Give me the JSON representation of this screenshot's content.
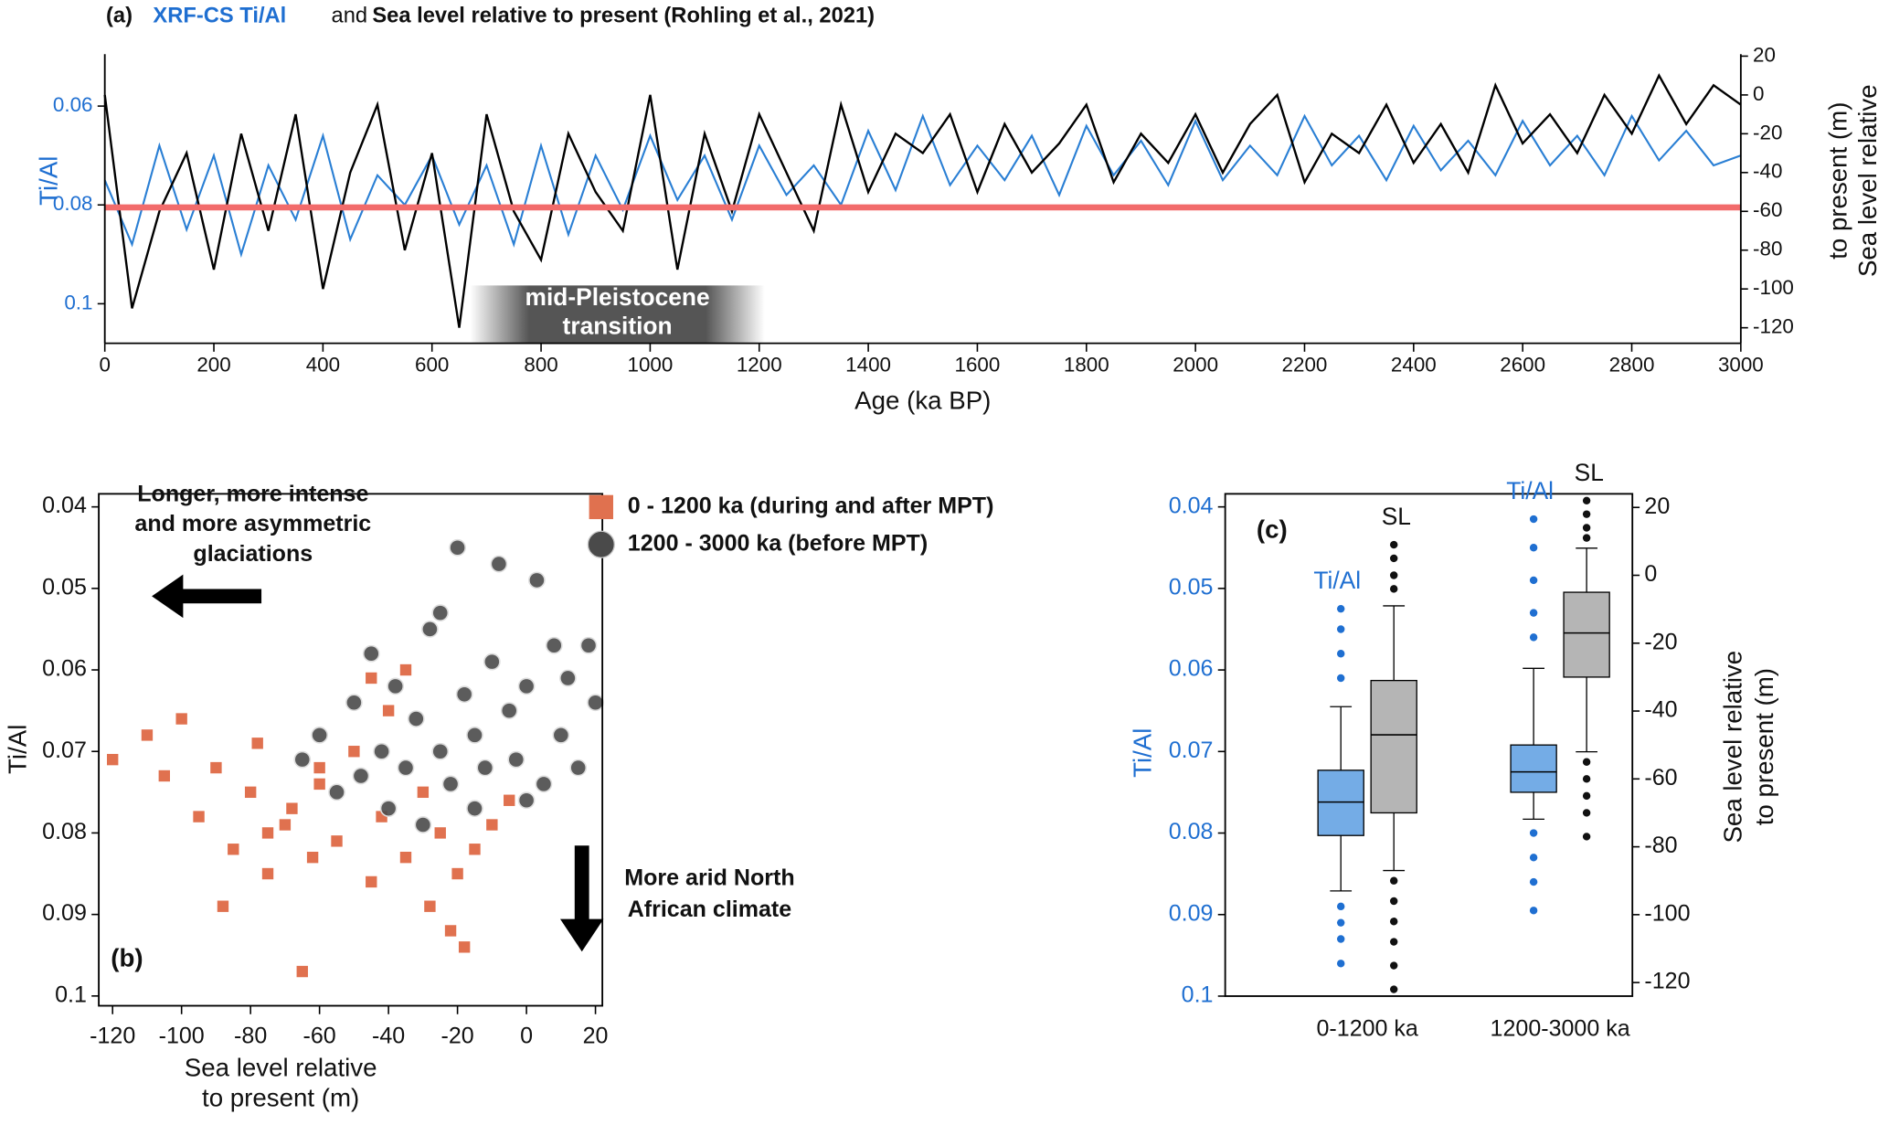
{
  "chart_data": [
    {
      "type": "line",
      "panel_label": "(a)",
      "legend_joiner": "and",
      "x": [
        0,
        50,
        100,
        150,
        200,
        250,
        300,
        350,
        400,
        450,
        500,
        550,
        600,
        650,
        700,
        750,
        800,
        850,
        900,
        950,
        1000,
        1050,
        1100,
        1150,
        1200,
        1250,
        1300,
        1350,
        1400,
        1450,
        1500,
        1550,
        1600,
        1650,
        1700,
        1750,
        1800,
        1850,
        1900,
        1950,
        2000,
        2050,
        2100,
        2150,
        2200,
        2250,
        2300,
        2350,
        2400,
        2450,
        2500,
        2550,
        2600,
        2650,
        2700,
        2750,
        2800,
        2850,
        2900,
        2950,
        3000
      ],
      "series": [
        {
          "name": "XRF-CS Ti/Al",
          "color": "#2a7fd4",
          "axis": "y",
          "values": [
            0.075,
            0.088,
            0.068,
            0.085,
            0.07,
            0.09,
            0.072,
            0.083,
            0.066,
            0.087,
            0.074,
            0.08,
            0.07,
            0.084,
            0.072,
            0.088,
            0.068,
            0.086,
            0.07,
            0.081,
            0.066,
            0.079,
            0.07,
            0.083,
            0.068,
            0.078,
            0.072,
            0.08,
            0.065,
            0.077,
            0.062,
            0.076,
            0.068,
            0.075,
            0.066,
            0.078,
            0.064,
            0.074,
            0.067,
            0.076,
            0.063,
            0.075,
            0.068,
            0.074,
            0.062,
            0.072,
            0.066,
            0.075,
            0.064,
            0.073,
            0.067,
            0.074,
            0.063,
            0.072,
            0.066,
            0.074,
            0.062,
            0.071,
            0.065,
            0.072,
            0.07
          ]
        },
        {
          "name": "Sea level relative to present (Rohling et al., 2021)",
          "color": "#000000",
          "axis": "y2",
          "values": [
            0,
            -110,
            -60,
            -30,
            -90,
            -20,
            -70,
            -10,
            -100,
            -40,
            -5,
            -80,
            -30,
            -120,
            -10,
            -60,
            -85,
            -20,
            -50,
            -70,
            0,
            -90,
            -20,
            -60,
            -10,
            -40,
            -70,
            -5,
            -50,
            -20,
            -30,
            -10,
            -50,
            -15,
            -40,
            -25,
            -5,
            -45,
            -20,
            -35,
            -10,
            -40,
            -15,
            0,
            -45,
            -20,
            -30,
            -5,
            -35,
            -15,
            -40,
            5,
            -25,
            -10,
            -30,
            0,
            -20,
            10,
            -15,
            5,
            -5
          ]
        }
      ],
      "hline": 0.0805,
      "hline_color": "#f26b6b",
      "annotation": {
        "text": [
          "mid-Pleistocene",
          "transition"
        ],
        "x": [
          670,
          1210
        ]
      },
      "xlabel": "Age (ka BP)",
      "ylabel": "Ti/Al",
      "y2label": [
        "Sea level relative",
        "to present (m)"
      ],
      "xlim": [
        0,
        3000
      ],
      "xticks": [
        0,
        200,
        400,
        600,
        800,
        1000,
        1200,
        1400,
        1600,
        1800,
        2000,
        2200,
        2400,
        2600,
        2800,
        3000
      ],
      "ylim": [
        0.108,
        0.0495
      ],
      "yticks": [
        0.06,
        0.08,
        0.1
      ],
      "y2lim": [
        -128,
        21
      ],
      "y2ticks": [
        20,
        0,
        -20,
        -40,
        -60,
        -80,
        -100,
        -120
      ]
    },
    {
      "type": "scatter",
      "panel_label": "(b)",
      "series": [
        {
          "name": "0 - 1200 ka (during and after MPT)",
          "color": "#e0714f",
          "marker": "square",
          "x": [
            -120,
            -110,
            -105,
            -100,
            -95,
            -90,
            -88,
            -85,
            -80,
            -78,
            -75,
            -70,
            -68,
            -65,
            -62,
            -60,
            -55,
            -50,
            -45,
            -42,
            -40,
            -35,
            -30,
            -28,
            -25,
            -22,
            -20,
            -18,
            -15,
            -10,
            -5,
            -45,
            -35,
            -60,
            -75
          ],
          "y": [
            0.071,
            0.068,
            0.073,
            0.066,
            0.078,
            0.072,
            0.089,
            0.082,
            0.075,
            0.069,
            0.085,
            0.079,
            0.077,
            0.097,
            0.083,
            0.074,
            0.081,
            0.07,
            0.086,
            0.078,
            0.065,
            0.083,
            0.075,
            0.089,
            0.08,
            0.092,
            0.085,
            0.094,
            0.082,
            0.079,
            0.076,
            0.061,
            0.06,
            0.072,
            0.08
          ]
        },
        {
          "name": "1200 - 3000 ka (before MPT)",
          "color": "#4a4a4a",
          "marker": "circle",
          "x": [
            -65,
            -60,
            -55,
            -50,
            -48,
            -45,
            -42,
            -40,
            -38,
            -35,
            -32,
            -30,
            -28,
            -25,
            -22,
            -20,
            -18,
            -15,
            -12,
            -10,
            -8,
            -5,
            -3,
            0,
            3,
            5,
            8,
            10,
            12,
            15,
            18,
            20,
            -25,
            -15,
            0
          ],
          "y": [
            0.071,
            0.068,
            0.075,
            0.064,
            0.073,
            0.058,
            0.07,
            0.077,
            0.062,
            0.072,
            0.066,
            0.079,
            0.055,
            0.07,
            0.074,
            0.045,
            0.063,
            0.068,
            0.072,
            0.059,
            0.047,
            0.065,
            0.071,
            0.062,
            0.049,
            0.074,
            0.057,
            0.068,
            0.061,
            0.072,
            0.057,
            0.064,
            0.053,
            0.077,
            0.076
          ]
        }
      ],
      "annotations": [
        [
          "Longer, more intense",
          "and more asymmetric",
          "glaciations"
        ],
        [
          "More arid North",
          "African climate"
        ]
      ],
      "xlabel": [
        "Sea level relative",
        "to present (m)"
      ],
      "ylabel": "Ti/Al",
      "xlim": [
        -124,
        22
      ],
      "xticks": [
        -120,
        -100,
        -80,
        -60,
        -40,
        -20,
        0,
        20
      ],
      "ylim": [
        0.1012,
        0.0384
      ],
      "yticks": [
        0.04,
        0.05,
        0.06,
        0.07,
        0.08,
        0.09,
        0.1
      ]
    },
    {
      "type": "box",
      "panel_label": "(c)",
      "categories": [
        "0-1200 ka",
        "1200-3000 ka"
      ],
      "series": [
        {
          "name": "Ti/Al",
          "color": "#74ace6",
          "outlier_color": "#1f6fd1",
          "axis": "y",
          "whisker_low": [
            0.0645,
            0.0598
          ],
          "q1": [
            0.0723,
            0.0692
          ],
          "median": [
            0.0762,
            0.0725
          ],
          "q3": [
            0.0803,
            0.075
          ],
          "whisker_high": [
            0.0871,
            0.0783
          ],
          "outliers": [
            [
              0.0525,
              0.055,
              0.058,
              0.061,
              0.089,
              0.091,
              0.093,
              0.096
            ],
            [
              0.0415,
              0.045,
              0.049,
              0.053,
              0.056,
              0.08,
              0.083,
              0.086,
              0.0895
            ]
          ]
        },
        {
          "name": "SL",
          "color": "#b5b5b5",
          "outlier_color": "#111111",
          "axis": "y2",
          "whisker_low": [
            -87,
            -52
          ],
          "q1": [
            -70,
            -30
          ],
          "median": [
            -47,
            -17
          ],
          "q3": [
            -31,
            -5
          ],
          "whisker_high": [
            -9,
            8
          ],
          "outliers": [
            [
              9,
              5,
              0,
              -4,
              -90,
              -96,
              -102,
              -108,
              -115,
              -122
            ],
            [
              22,
              18,
              14,
              11,
              -55,
              -60,
              -65,
              -70,
              -77
            ]
          ]
        }
      ],
      "ylabel": "Ti/Al",
      "y2label": [
        "Sea level relative",
        "to present (m)"
      ],
      "ylim": [
        0.1,
        0.0384
      ],
      "yticks": [
        0.04,
        0.05,
        0.06,
        0.07,
        0.08,
        0.09,
        0.1
      ],
      "y2lim": [
        -124,
        24
      ],
      "y2ticks": [
        20,
        0,
        -20,
        -40,
        -60,
        -80,
        -100,
        -120
      ]
    }
  ]
}
